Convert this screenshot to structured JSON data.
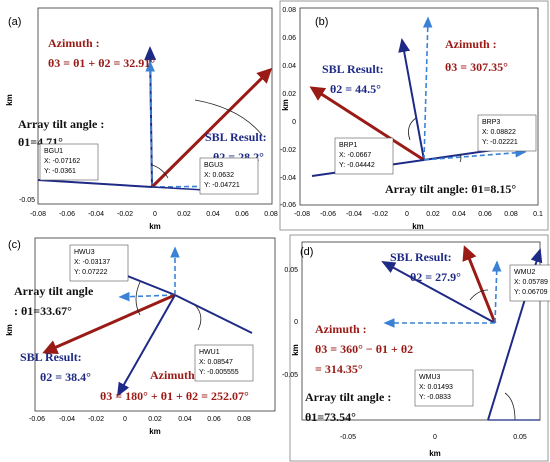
{
  "panels": [
    {
      "label": "(a)",
      "xlabel": "km",
      "ylabel": "km",
      "xticks": [
        "-0.08",
        "-0.06",
        "-0.04",
        "-0.02",
        "0",
        "0.02",
        "0.04",
        "0.06",
        "0.08"
      ],
      "yticks": [
        "-0.05"
      ],
      "texts": [
        "Azimuth :",
        "θ3 = θ1 + θ2 = 32.91°",
        "Array tilt angle :",
        "θ1=4.71°",
        "SBL Result:",
        "θ2 = 28.2°"
      ],
      "tips": [
        [
          "BGU1",
          "X: -0.07162",
          "Y: -0.0361"
        ],
        [
          "BGU3",
          "X: 0.0632",
          "Y: -0.04721"
        ]
      ]
    },
    {
      "label": "(b)",
      "xlabel": "km",
      "ylabel": "km",
      "xticks": [
        "-0.08",
        "-0.06",
        "-0.04",
        "-0.02",
        "0",
        "0.02",
        "0.04",
        "0.06",
        "0.08",
        "0.1"
      ],
      "yticks": [
        "0.08",
        "0.06",
        "0.04",
        "0.02",
        "0",
        "-0.02",
        "-0.04",
        "-0.06"
      ],
      "texts": [
        "Azimuth :",
        "θ3 = 307.35°",
        "SBL Result:",
        "θ2 = 44.5°",
        "Array tilt angle: θ1=8.15°"
      ],
      "tips": [
        [
          "BRP1",
          "X: -0.0667",
          "Y: -0.04442"
        ],
        [
          "BRP3",
          "X: 0.08822",
          "Y: -0.02221"
        ]
      ]
    },
    {
      "label": "(c)",
      "xlabel": "km",
      "ylabel": "km",
      "xticks": [
        "-0.06",
        "-0.04",
        "-0.02",
        "0",
        "0.02",
        "0.04",
        "0.06",
        "0.08"
      ],
      "yticks": [],
      "texts": [
        "Array tilt angle",
        ": θ1=33.67°",
        "SBL Result:",
        "θ2 = 38.4°",
        "Azimuth :",
        "θ3 = 180° + θ1 + θ2 = 252.07°"
      ],
      "tips": [
        [
          "HWU3",
          "X: -0.03137",
          "Y: 0.07222"
        ],
        [
          "HWU1",
          "X: 0.08547",
          "Y: -0.005555"
        ]
      ]
    },
    {
      "label": "(d)",
      "xlabel": "km",
      "ylabel": "km",
      "xticks": [
        "-0.05",
        "0",
        "0.05"
      ],
      "yticks": [
        "0.05",
        "0",
        "-0.05"
      ],
      "texts": [
        "SBL Result:",
        "θ2 = 27.9°",
        "Azimuth :",
        "θ3 = 360° − θ1 + θ2",
        "= 314.35°",
        "Array tilt angle :",
        "θ1=73.54°"
      ],
      "tips": [
        [
          "WMU2",
          "X: 0.05789",
          "Y: 0.06709"
        ],
        [
          "WMU3",
          "X: 0.01493",
          "Y: -0.0833"
        ]
      ]
    }
  ]
}
